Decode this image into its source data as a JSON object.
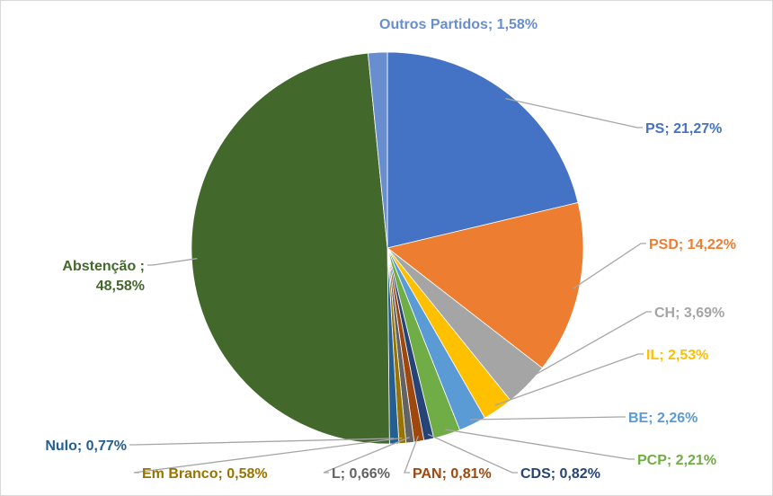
{
  "chart_data": {
    "type": "pie",
    "title": "",
    "legend": "none",
    "data_labels": "category; percent",
    "start_angle_deg": 0,
    "direction": "clockwise",
    "slices": [
      {
        "name": "PS",
        "value": 21.27,
        "label": "PS; 21,27%",
        "color": "#4472C4",
        "label_color": "#4472C4"
      },
      {
        "name": "PSD",
        "value": 14.22,
        "label": "PSD; 14,22%",
        "color": "#ED7D31",
        "label_color": "#ED7D31"
      },
      {
        "name": "CH",
        "value": 3.69,
        "label": "CH; 3,69%",
        "color": "#A5A5A5",
        "label_color": "#A5A5A5"
      },
      {
        "name": "IL",
        "value": 2.53,
        "label": "IL; 2,53%",
        "color": "#FFC000",
        "label_color": "#FFC000"
      },
      {
        "name": "BE",
        "value": 2.26,
        "label": "BE; 2,26%",
        "color": "#5B9BD5",
        "label_color": "#5B9BD5"
      },
      {
        "name": "PCP",
        "value": 2.21,
        "label": "PCP; 2,21%",
        "color": "#70AD47",
        "label_color": "#70AD47"
      },
      {
        "name": "CDS",
        "value": 0.82,
        "label": "CDS; 0,82%",
        "color": "#264478",
        "label_color": "#264478"
      },
      {
        "name": "PAN",
        "value": 0.81,
        "label": "PAN; 0,81%",
        "color": "#9E480E",
        "label_color": "#9E480E"
      },
      {
        "name": "L",
        "value": 0.66,
        "label": "L; 0,66%",
        "color": "#636363",
        "label_color": "#636363"
      },
      {
        "name": "Em Branco",
        "value": 0.58,
        "label": "Em Branco; 0,58%",
        "color": "#997300",
        "label_color": "#997300"
      },
      {
        "name": "Nulo",
        "value": 0.77,
        "label": "Nulo; 0,77%",
        "color": "#255E91",
        "label_color": "#255E91"
      },
      {
        "name": "Abstenção",
        "value": 48.58,
        "label": "Abstenção ; 48,58%",
        "label_lines": [
          "Abstenção ;",
          "48,58%"
        ],
        "color": "#43682B",
        "label_color": "#43682B"
      },
      {
        "name": "Outros Partidos",
        "value": 1.58,
        "label": "Outros Partidos; 1,58%",
        "color": "#698ED0",
        "label_color": "#698ED0"
      }
    ]
  }
}
